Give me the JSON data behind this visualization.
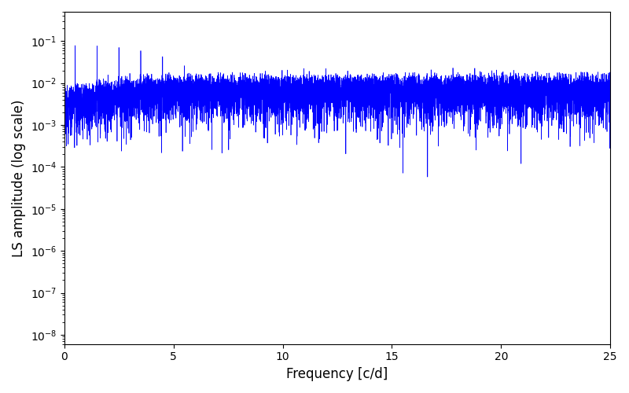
{
  "xlabel": "Frequency [c/d]",
  "ylabel": "LS amplitude (log scale)",
  "line_color": "blue",
  "xlim": [
    0,
    25
  ],
  "ylim": [
    6e-09,
    0.5
  ],
  "figsize": [
    8.0,
    5.0
  ],
  "dpi": 100
}
